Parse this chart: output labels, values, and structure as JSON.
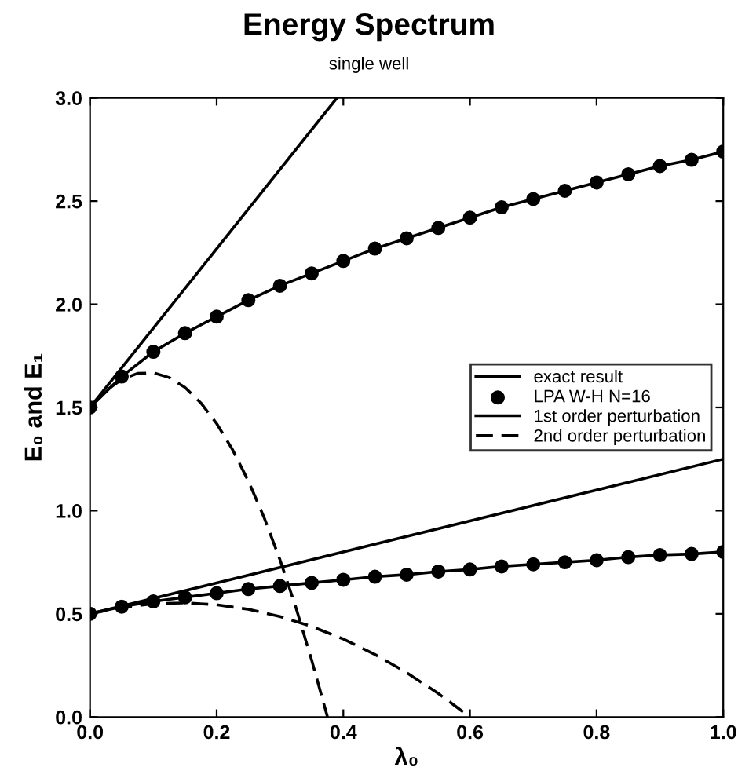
{
  "chart_data": {
    "type": "line",
    "title": "Energy Spectrum",
    "subtitle": "single well",
    "xlabel": "λ₀",
    "ylabel": "E₀ and E₁",
    "xlim": [
      0.0,
      1.0
    ],
    "ylim": [
      0.0,
      3.0
    ],
    "xticks": [
      {
        "value": 0,
        "label": "0.0"
      },
      0.2,
      0.4,
      0.6,
      0.8,
      {
        "value": 1,
        "label": "1.0"
      }
    ],
    "yticks": [
      {
        "value": 0,
        "label": "0.0"
      },
      0.5,
      {
        "value": 1,
        "label": "1.0"
      },
      1.5,
      {
        "value": 2,
        "label": "2.0"
      },
      2.5,
      {
        "value": 3,
        "label": "3.0"
      }
    ],
    "grid": false,
    "legend": "right",
    "series": [
      {
        "name": "exact result",
        "color": "#000000",
        "line_style": "solid",
        "x": [
          0.0,
          0.05,
          0.1,
          0.15,
          0.2,
          0.25,
          0.3,
          0.35,
          0.4,
          0.45,
          0.5,
          0.55,
          0.6,
          0.65,
          0.7,
          0.75,
          0.8,
          0.85,
          0.9,
          0.95,
          1.0
        ],
        "values": [
          0.5,
          0.535,
          0.56,
          0.58,
          0.6,
          0.62,
          0.635,
          0.65,
          0.665,
          0.68,
          0.69,
          0.705,
          0.715,
          0.73,
          0.74,
          0.75,
          0.76,
          0.775,
          0.785,
          0.79,
          0.8
        ]
      },
      {
        "color": "#000000",
        "line_style": "solid",
        "x": [
          0.0,
          0.05,
          0.1,
          0.15,
          0.2,
          0.25,
          0.3,
          0.35,
          0.4,
          0.45,
          0.5,
          0.55,
          0.6,
          0.65,
          0.7,
          0.75,
          0.8,
          0.85,
          0.9,
          0.95,
          1.0
        ],
        "values": [
          1.5,
          1.65,
          1.77,
          1.86,
          1.94,
          2.02,
          2.09,
          2.15,
          2.21,
          2.27,
          2.32,
          2.37,
          2.42,
          2.47,
          2.51,
          2.55,
          2.59,
          2.63,
          2.67,
          2.7,
          2.74
        ]
      },
      {
        "name": "LPA W-H N=16",
        "type": "scatter",
        "color": "#000000",
        "marker": "circle",
        "x": [
          0.0,
          0.05,
          0.1,
          0.15,
          0.2,
          0.25,
          0.3,
          0.35,
          0.4,
          0.45,
          0.5,
          0.55,
          0.6,
          0.65,
          0.7,
          0.75,
          0.8,
          0.85,
          0.9,
          0.95,
          1.0
        ],
        "values": [
          0.5,
          0.535,
          0.56,
          0.58,
          0.6,
          0.62,
          0.635,
          0.65,
          0.665,
          0.68,
          0.69,
          0.705,
          0.715,
          0.73,
          0.74,
          0.75,
          0.76,
          0.775,
          0.785,
          0.79,
          0.8
        ]
      },
      {
        "type": "scatter",
        "color": "#000000",
        "marker": "circle",
        "x": [
          0.0,
          0.05,
          0.1,
          0.15,
          0.2,
          0.25,
          0.3,
          0.35,
          0.4,
          0.45,
          0.5,
          0.55,
          0.6,
          0.65,
          0.7,
          0.75,
          0.8,
          0.85,
          0.9,
          0.95,
          1.0
        ],
        "values": [
          1.5,
          1.65,
          1.77,
          1.86,
          1.94,
          2.02,
          2.09,
          2.15,
          2.21,
          2.27,
          2.32,
          2.37,
          2.42,
          2.47,
          2.51,
          2.55,
          2.59,
          2.63,
          2.67,
          2.7,
          2.74
        ]
      },
      {
        "name": "1st order perturbation",
        "color": "#000000",
        "line_style": "solid",
        "x": [
          0.0,
          1.0
        ],
        "values": [
          0.5,
          1.25
        ]
      },
      {
        "color": "#000000",
        "line_style": "solid",
        "x": [
          0.0,
          0.39
        ],
        "values": [
          1.5,
          3.0
        ]
      },
      {
        "name": "2nd order perturbation",
        "color": "#000000",
        "line_style": "dashed",
        "x": [
          0.0,
          0.05,
          0.1,
          0.15,
          0.2,
          0.25,
          0.3,
          0.35,
          0.4,
          0.45,
          0.5,
          0.55,
          0.6
        ],
        "values": [
          0.5,
          0.531,
          0.549,
          0.553,
          0.544,
          0.522,
          0.487,
          0.439,
          0.378,
          0.303,
          0.215,
          0.114,
          0.0
        ]
      },
      {
        "color": "#000000",
        "line_style": "dashed",
        "x": [
          0.0,
          0.025,
          0.05,
          0.075,
          0.1,
          0.125,
          0.15,
          0.175,
          0.2,
          0.225,
          0.25,
          0.275,
          0.3,
          0.325,
          0.35,
          0.375
        ],
        "values": [
          1.5,
          1.581,
          1.636,
          1.665,
          1.668,
          1.645,
          1.597,
          1.522,
          1.422,
          1.296,
          1.144,
          0.966,
          0.762,
          0.532,
          0.276,
          0.0
        ]
      }
    ]
  }
}
